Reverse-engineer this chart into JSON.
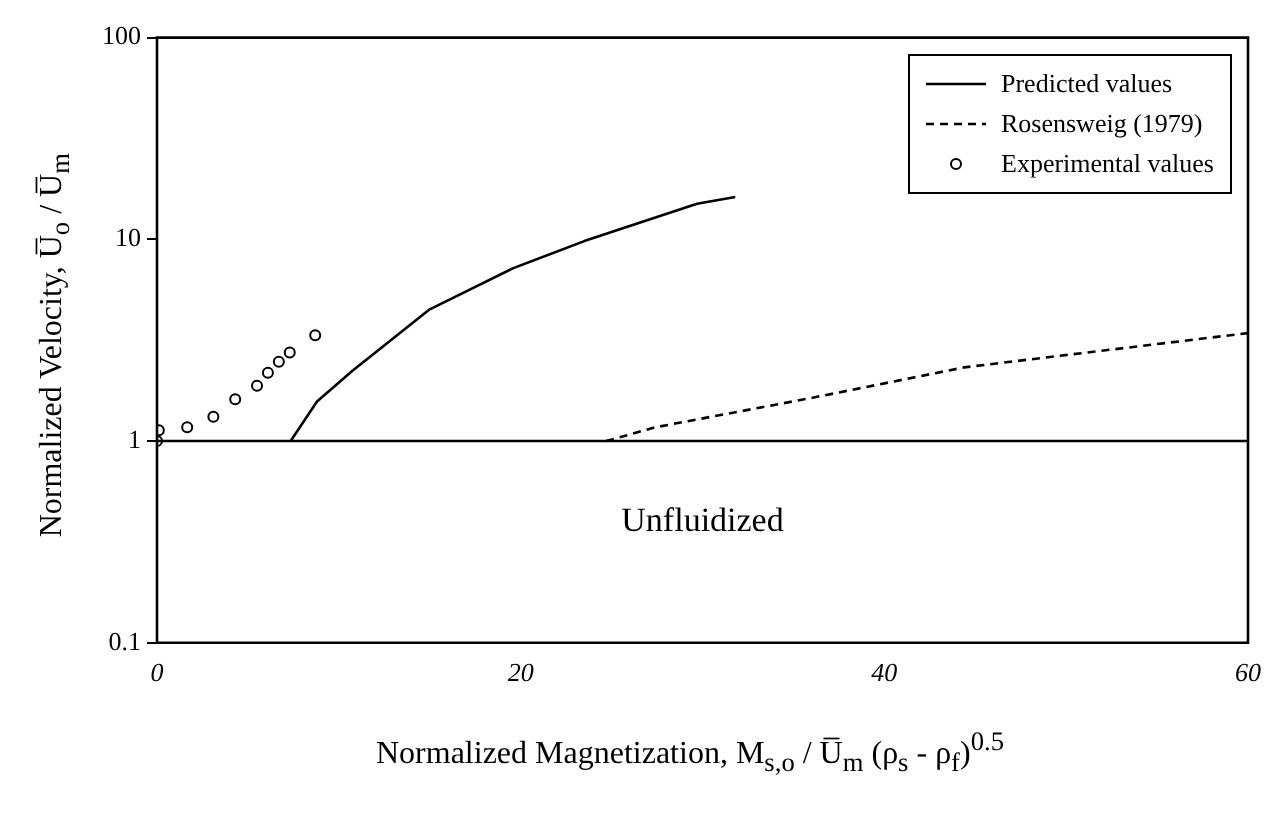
{
  "chart_data": {
    "type": "line",
    "xlabel": "Normalized Magnetization, M$_{s,o}$ / U̅$_{m}$ (ρ$_{s}$ - ρ$_{f}$)$^{0.5}$",
    "ylabel": "Normalized Velocity, U̅$_{o}$ / U̅$_{m}$",
    "log": "y",
    "xlim": [
      0,
      60
    ],
    "xticks": [
      0,
      20,
      40,
      60
    ],
    "ylim": [
      0.1,
      100
    ],
    "yticks": [
      0.1,
      1,
      10,
      100
    ],
    "grid": false,
    "legend": "top right",
    "series": [
      {
        "name": "Predicted values",
        "color": "#000000",
        "line_style": "solid",
        "marker": "none",
        "x": [
          7.35,
          8.8,
          10.75,
          15.0,
          19.6,
          23.5,
          29.7,
          31.8
        ],
        "values": [
          1,
          1.57,
          2.23,
          4.5,
          7.2,
          9.8,
          15.0,
          16.2
        ]
      },
      {
        "name": "Rosensweig (1979)",
        "type": "line",
        "color": "#000000",
        "line_style": "dashed",
        "marker": "none",
        "x": [
          24.7,
          27.4,
          35.9,
          44.4,
          60
        ],
        "values": [
          1,
          1.17,
          1.63,
          2.32,
          3.43
        ]
      },
      {
        "name": "Experimental values",
        "type": "scatter",
        "color": "#000000",
        "marker": "circle",
        "x": [
          0,
          0.1,
          1.66,
          3.1,
          4.3,
          5.5,
          6.1,
          6.7,
          7.3,
          8.7
        ],
        "values": [
          1.0,
          1.13,
          1.17,
          1.32,
          1.61,
          1.88,
          2.18,
          2.47,
          2.75,
          3.35
        ]
      }
    ],
    "ref_lines": [
      {
        "axis": "y",
        "value": 1,
        "color": "#000000"
      }
    ],
    "annotations": [
      "Unfluidized"
    ]
  }
}
